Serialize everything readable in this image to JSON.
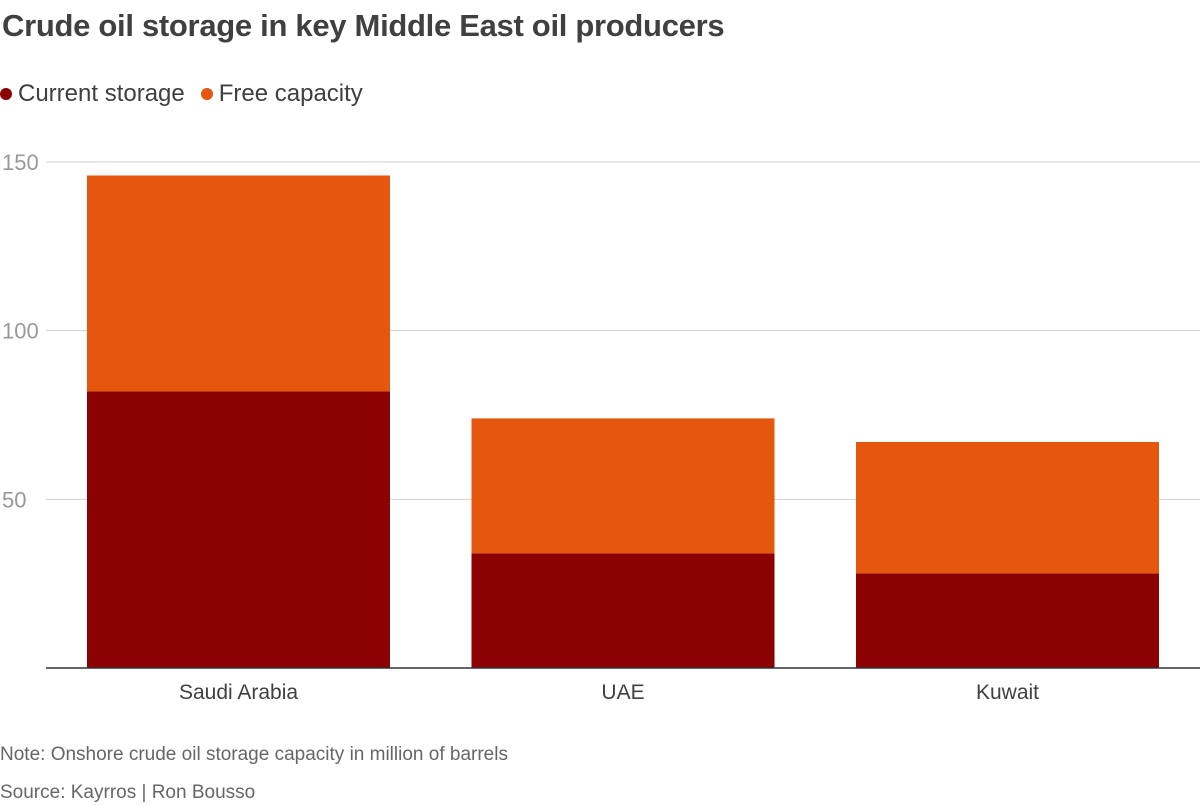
{
  "chart_data": {
    "type": "bar",
    "stacked": true,
    "title": "Crude oil storage in key Middle East oil producers",
    "categories": [
      "Saudi Arabia",
      "UAE",
      "Kuwait"
    ],
    "series": [
      {
        "name": "Current storage",
        "color": "#8b0000",
        "values": [
          82,
          34,
          28
        ]
      },
      {
        "name": "Free capacity",
        "color": "#e5560f",
        "values": [
          64,
          40,
          39
        ]
      }
    ],
    "yticks": [
      50,
      100,
      150
    ],
    "ylim": [
      0,
      150
    ],
    "grid": true,
    "legend_position": "top-left"
  },
  "footer": {
    "note": "Note: Onshore crude oil storage capacity in million of barrels",
    "source": "Source: Kayrros | Ron Bousso"
  }
}
